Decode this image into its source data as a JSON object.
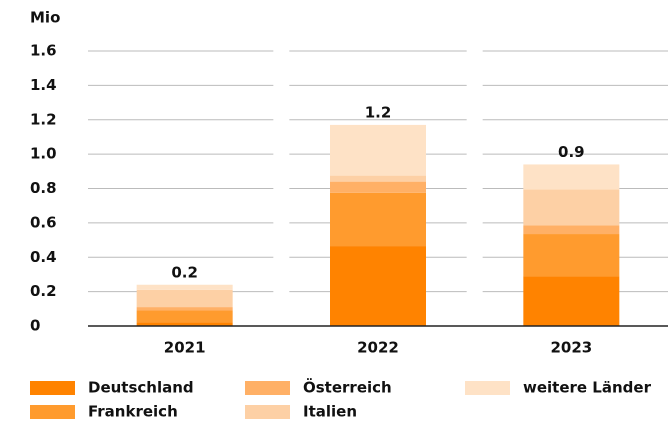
{
  "chart_data": {
    "type": "stacked_bar",
    "y_label": "Mio",
    "categories": [
      "2021",
      "2022",
      "2023"
    ],
    "series": [
      {
        "name": "Deutschland",
        "color": "#ff8300",
        "values": [
          0.02,
          0.465,
          0.29
        ]
      },
      {
        "name": "Frankreich",
        "color": "#ff9b2e",
        "values": [
          0.07,
          0.31,
          0.245
        ]
      },
      {
        "name": "Österreich",
        "color": "#ffb066",
        "values": [
          0.02,
          0.065,
          0.05
        ]
      },
      {
        "name": "Italien",
        "color": "#fdd0a5",
        "values": [
          0.1,
          0.035,
          0.21
        ]
      },
      {
        "name": "weitere Länder",
        "color": "#fee2c6",
        "values": [
          0.03,
          0.295,
          0.145
        ]
      }
    ],
    "totals": [
      0.24,
      1.17,
      0.94
    ],
    "value_labels": [
      "0.2",
      "1.2",
      "0.9"
    ],
    "ylim": [
      0,
      1.6
    ],
    "yticks": [
      0,
      0.2,
      0.4,
      0.6,
      0.8,
      {
        "value": 1,
        "label": "1.0"
      },
      1.2,
      1.4,
      1.6
    ],
    "grid": true
  }
}
